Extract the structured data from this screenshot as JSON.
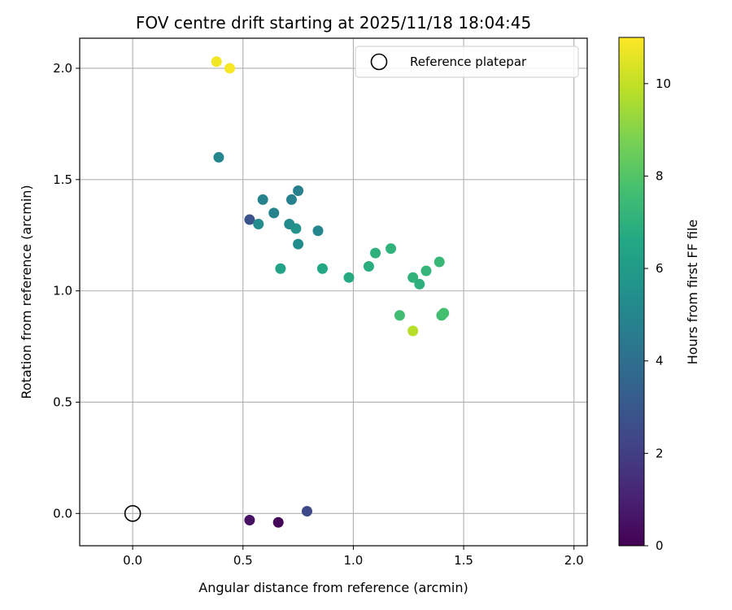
{
  "chart_data": {
    "type": "scatter",
    "title": "FOV centre drift starting at 2025/11/18 18:04:45",
    "xlabel": "Angular distance from reference (arcmin)",
    "ylabel": "Rotation from reference (arcmin)",
    "xlim": [
      -0.24,
      2.06
    ],
    "ylim": [
      -0.145,
      2.135
    ],
    "xticks": [
      0.0,
      0.5,
      1.0,
      1.5,
      2.0
    ],
    "xtick_labels": [
      "0.0",
      "0.5",
      "1.0",
      "1.5",
      "2.0"
    ],
    "yticks": [
      0.0,
      0.5,
      1.0,
      1.5,
      2.0
    ],
    "ytick_labels": [
      "0.0",
      "0.5",
      "1.0",
      "1.5",
      "2.0"
    ],
    "grid": true,
    "reference": {
      "x": 0.0,
      "y": 0.0,
      "label": "Reference platepar"
    },
    "legend": {
      "location": "top-right",
      "entries": [
        "Reference platepar"
      ]
    },
    "colorbar": {
      "label": "Hours from first FF file",
      "colormap": "viridis",
      "range": [
        0,
        11
      ],
      "ticks": [
        0,
        2,
        4,
        6,
        8,
        10
      ],
      "tick_labels": [
        "0",
        "2",
        "4",
        "6",
        "8",
        "10"
      ]
    },
    "points": [
      {
        "x": 0.66,
        "y": -0.04,
        "hours": 0.1
      },
      {
        "x": 0.53,
        "y": -0.03,
        "hours": 0.5
      },
      {
        "x": 0.79,
        "y": 0.01,
        "hours": 2.4
      },
      {
        "x": 0.53,
        "y": 1.32,
        "hours": 2.8
      },
      {
        "x": 0.75,
        "y": 1.45,
        "hours": 4.7
      },
      {
        "x": 0.72,
        "y": 1.41,
        "hours": 4.8
      },
      {
        "x": 0.59,
        "y": 1.41,
        "hours": 4.9
      },
      {
        "x": 0.64,
        "y": 1.35,
        "hours": 4.9
      },
      {
        "x": 0.39,
        "y": 1.6,
        "hours": 5.0
      },
      {
        "x": 0.84,
        "y": 1.27,
        "hours": 5.0
      },
      {
        "x": 0.71,
        "y": 1.3,
        "hours": 5.2
      },
      {
        "x": 0.57,
        "y": 1.3,
        "hours": 5.3
      },
      {
        "x": 0.75,
        "y": 1.21,
        "hours": 5.3
      },
      {
        "x": 0.74,
        "y": 1.28,
        "hours": 5.6
      },
      {
        "x": 0.67,
        "y": 1.1,
        "hours": 6.3
      },
      {
        "x": 0.86,
        "y": 1.1,
        "hours": 6.6
      },
      {
        "x": 0.98,
        "y": 1.06,
        "hours": 6.7
      },
      {
        "x": 1.07,
        "y": 1.11,
        "hours": 6.9
      },
      {
        "x": 1.1,
        "y": 1.17,
        "hours": 7.0
      },
      {
        "x": 1.17,
        "y": 1.19,
        "hours": 7.1
      },
      {
        "x": 1.27,
        "y": 1.06,
        "hours": 7.1
      },
      {
        "x": 1.3,
        "y": 1.03,
        "hours": 7.0
      },
      {
        "x": 1.33,
        "y": 1.09,
        "hours": 7.2
      },
      {
        "x": 1.39,
        "y": 1.13,
        "hours": 7.3
      },
      {
        "x": 1.21,
        "y": 0.89,
        "hours": 7.6
      },
      {
        "x": 1.4,
        "y": 0.89,
        "hours": 7.6
      },
      {
        "x": 1.41,
        "y": 0.9,
        "hours": 7.7
      },
      {
        "x": 1.27,
        "y": 0.82,
        "hours": 9.8
      },
      {
        "x": 0.38,
        "y": 2.03,
        "hours": 10.8
      },
      {
        "x": 0.44,
        "y": 2.0,
        "hours": 10.9
      }
    ]
  }
}
